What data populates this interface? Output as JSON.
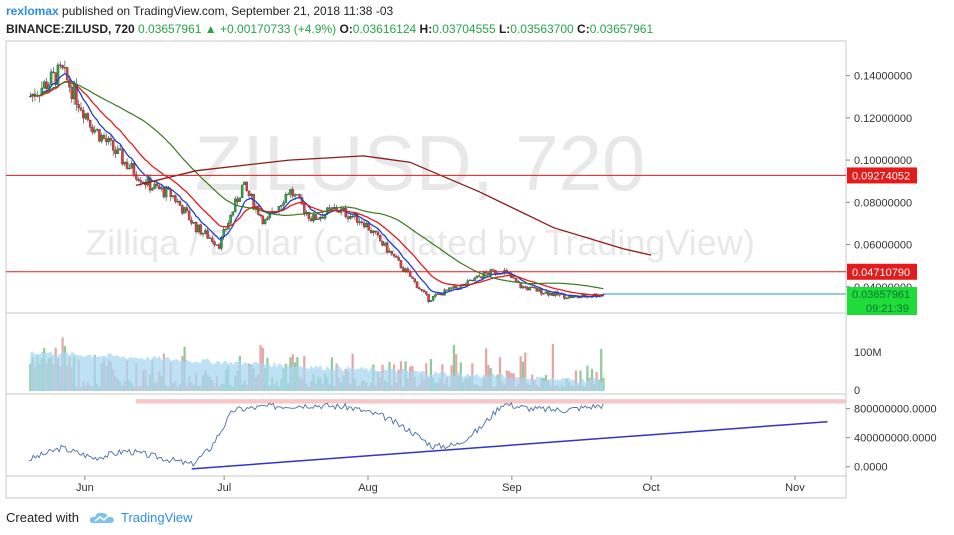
{
  "header": {
    "username": "rexlomax",
    "published_text": "published on TradingView.com, September 21, 2018 11:38 -03",
    "symbol": "BINANCE:ZILUSD, 720",
    "last": "0.03657961",
    "change": "+0.00170733 (+4.9%)",
    "open_label": "O:",
    "open": "0.03616124",
    "high_label": "H:",
    "high": "0.03704555",
    "low_label": "L:",
    "low": "0.03563700",
    "close_label": "C:",
    "close": "0.03657961"
  },
  "watermark": {
    "line1": "ZILUSD, 720",
    "line2": "Zilliqa / Dollar (calculated by TradingView)"
  },
  "footer": {
    "created_with": "Created with",
    "brand": "TradingView"
  },
  "colors": {
    "up": "#26a646",
    "down": "#e33b3b",
    "ema_fast": "#1e3fcc",
    "ema_mid": "#e31b1b",
    "sma_slow": "#3a7a1f",
    "sma_long": "#8b1a1a",
    "price_line": "#2b8ee6",
    "hline": "#e31b1b",
    "trend": "#3333cc",
    "osc": "#4a6fa5",
    "zone": "#f7c6c6",
    "vol_area": "#a9d7f2"
  },
  "chart_data": {
    "type": "candlestick",
    "x_ticks": [
      "Jun",
      "Jul",
      "Aug",
      "Sep",
      "Oct",
      "Nov"
    ],
    "price_axis": {
      "ticks": [
        "0.14000000",
        "0.12000000",
        "0.10000000",
        "0.08000000",
        "0.06000000",
        "0.04000000"
      ],
      "tick_values": [
        0.14,
        0.12,
        0.1,
        0.08,
        0.06,
        0.04
      ],
      "range": [
        0.029,
        0.155
      ]
    },
    "horizontal_lines": [
      {
        "value": 0.09274052,
        "label": "0.09274052"
      },
      {
        "value": 0.0471079,
        "label": "0.04710790"
      }
    ],
    "current_price": {
      "value": 0.03657961,
      "label": "0.03657961",
      "countdown": "09:21:39"
    },
    "price_path_dates": [
      "2018-05-20",
      "2018-05-27",
      "2018-06-03",
      "2018-06-10",
      "2018-06-15",
      "2018-06-20",
      "2018-06-25",
      "2018-06-30",
      "2018-07-05",
      "2018-07-10",
      "2018-07-15",
      "2018-07-20",
      "2018-07-25",
      "2018-07-31",
      "2018-08-05",
      "2018-08-10",
      "2018-08-14",
      "2018-08-18",
      "2018-08-22",
      "2018-08-26",
      "2018-08-30",
      "2018-09-03",
      "2018-09-07",
      "2018-09-11",
      "2018-09-15",
      "2018-09-21"
    ],
    "price_path": [
      0.13,
      0.142,
      0.115,
      0.098,
      0.088,
      0.083,
      0.068,
      0.06,
      0.088,
      0.07,
      0.086,
      0.072,
      0.077,
      0.071,
      0.058,
      0.045,
      0.034,
      0.038,
      0.041,
      0.046,
      0.048,
      0.04,
      0.038,
      0.036,
      0.035,
      0.0366
    ],
    "volume_axis": {
      "ticks": [
        "100M",
        "0"
      ]
    },
    "oscillator_axis": {
      "ticks": [
        "800000000.0000",
        "400000000.0000",
        "0.0000"
      ],
      "tick_values": [
        800000000,
        400000000,
        0
      ],
      "range": [
        -100000000,
        960000000
      ]
    },
    "oscillator_path_dates": [
      "2018-05-20",
      "2018-05-27",
      "2018-06-03",
      "2018-06-10",
      "2018-06-17",
      "2018-06-24",
      "2018-06-28",
      "2018-07-03",
      "2018-07-10",
      "2018-07-20",
      "2018-07-28",
      "2018-08-04",
      "2018-08-10",
      "2018-08-15",
      "2018-08-20",
      "2018-08-25",
      "2018-08-30",
      "2018-09-05",
      "2018-09-12",
      "2018-09-21"
    ],
    "oscillator_path": [
      100000000,
      260000000,
      120000000,
      220000000,
      130000000,
      30000000,
      250000000,
      780000000,
      830000000,
      850000000,
      820000000,
      700000000,
      500000000,
      280000000,
      300000000,
      520000000,
      870000000,
      800000000,
      780000000,
      850000000
    ],
    "trendline_dates": [
      "2018-06-24",
      "2018-11-08"
    ],
    "trendline_values": [
      -30000000,
      620000000
    ],
    "overbought_zone": [
      870000000,
      930000000
    ]
  }
}
